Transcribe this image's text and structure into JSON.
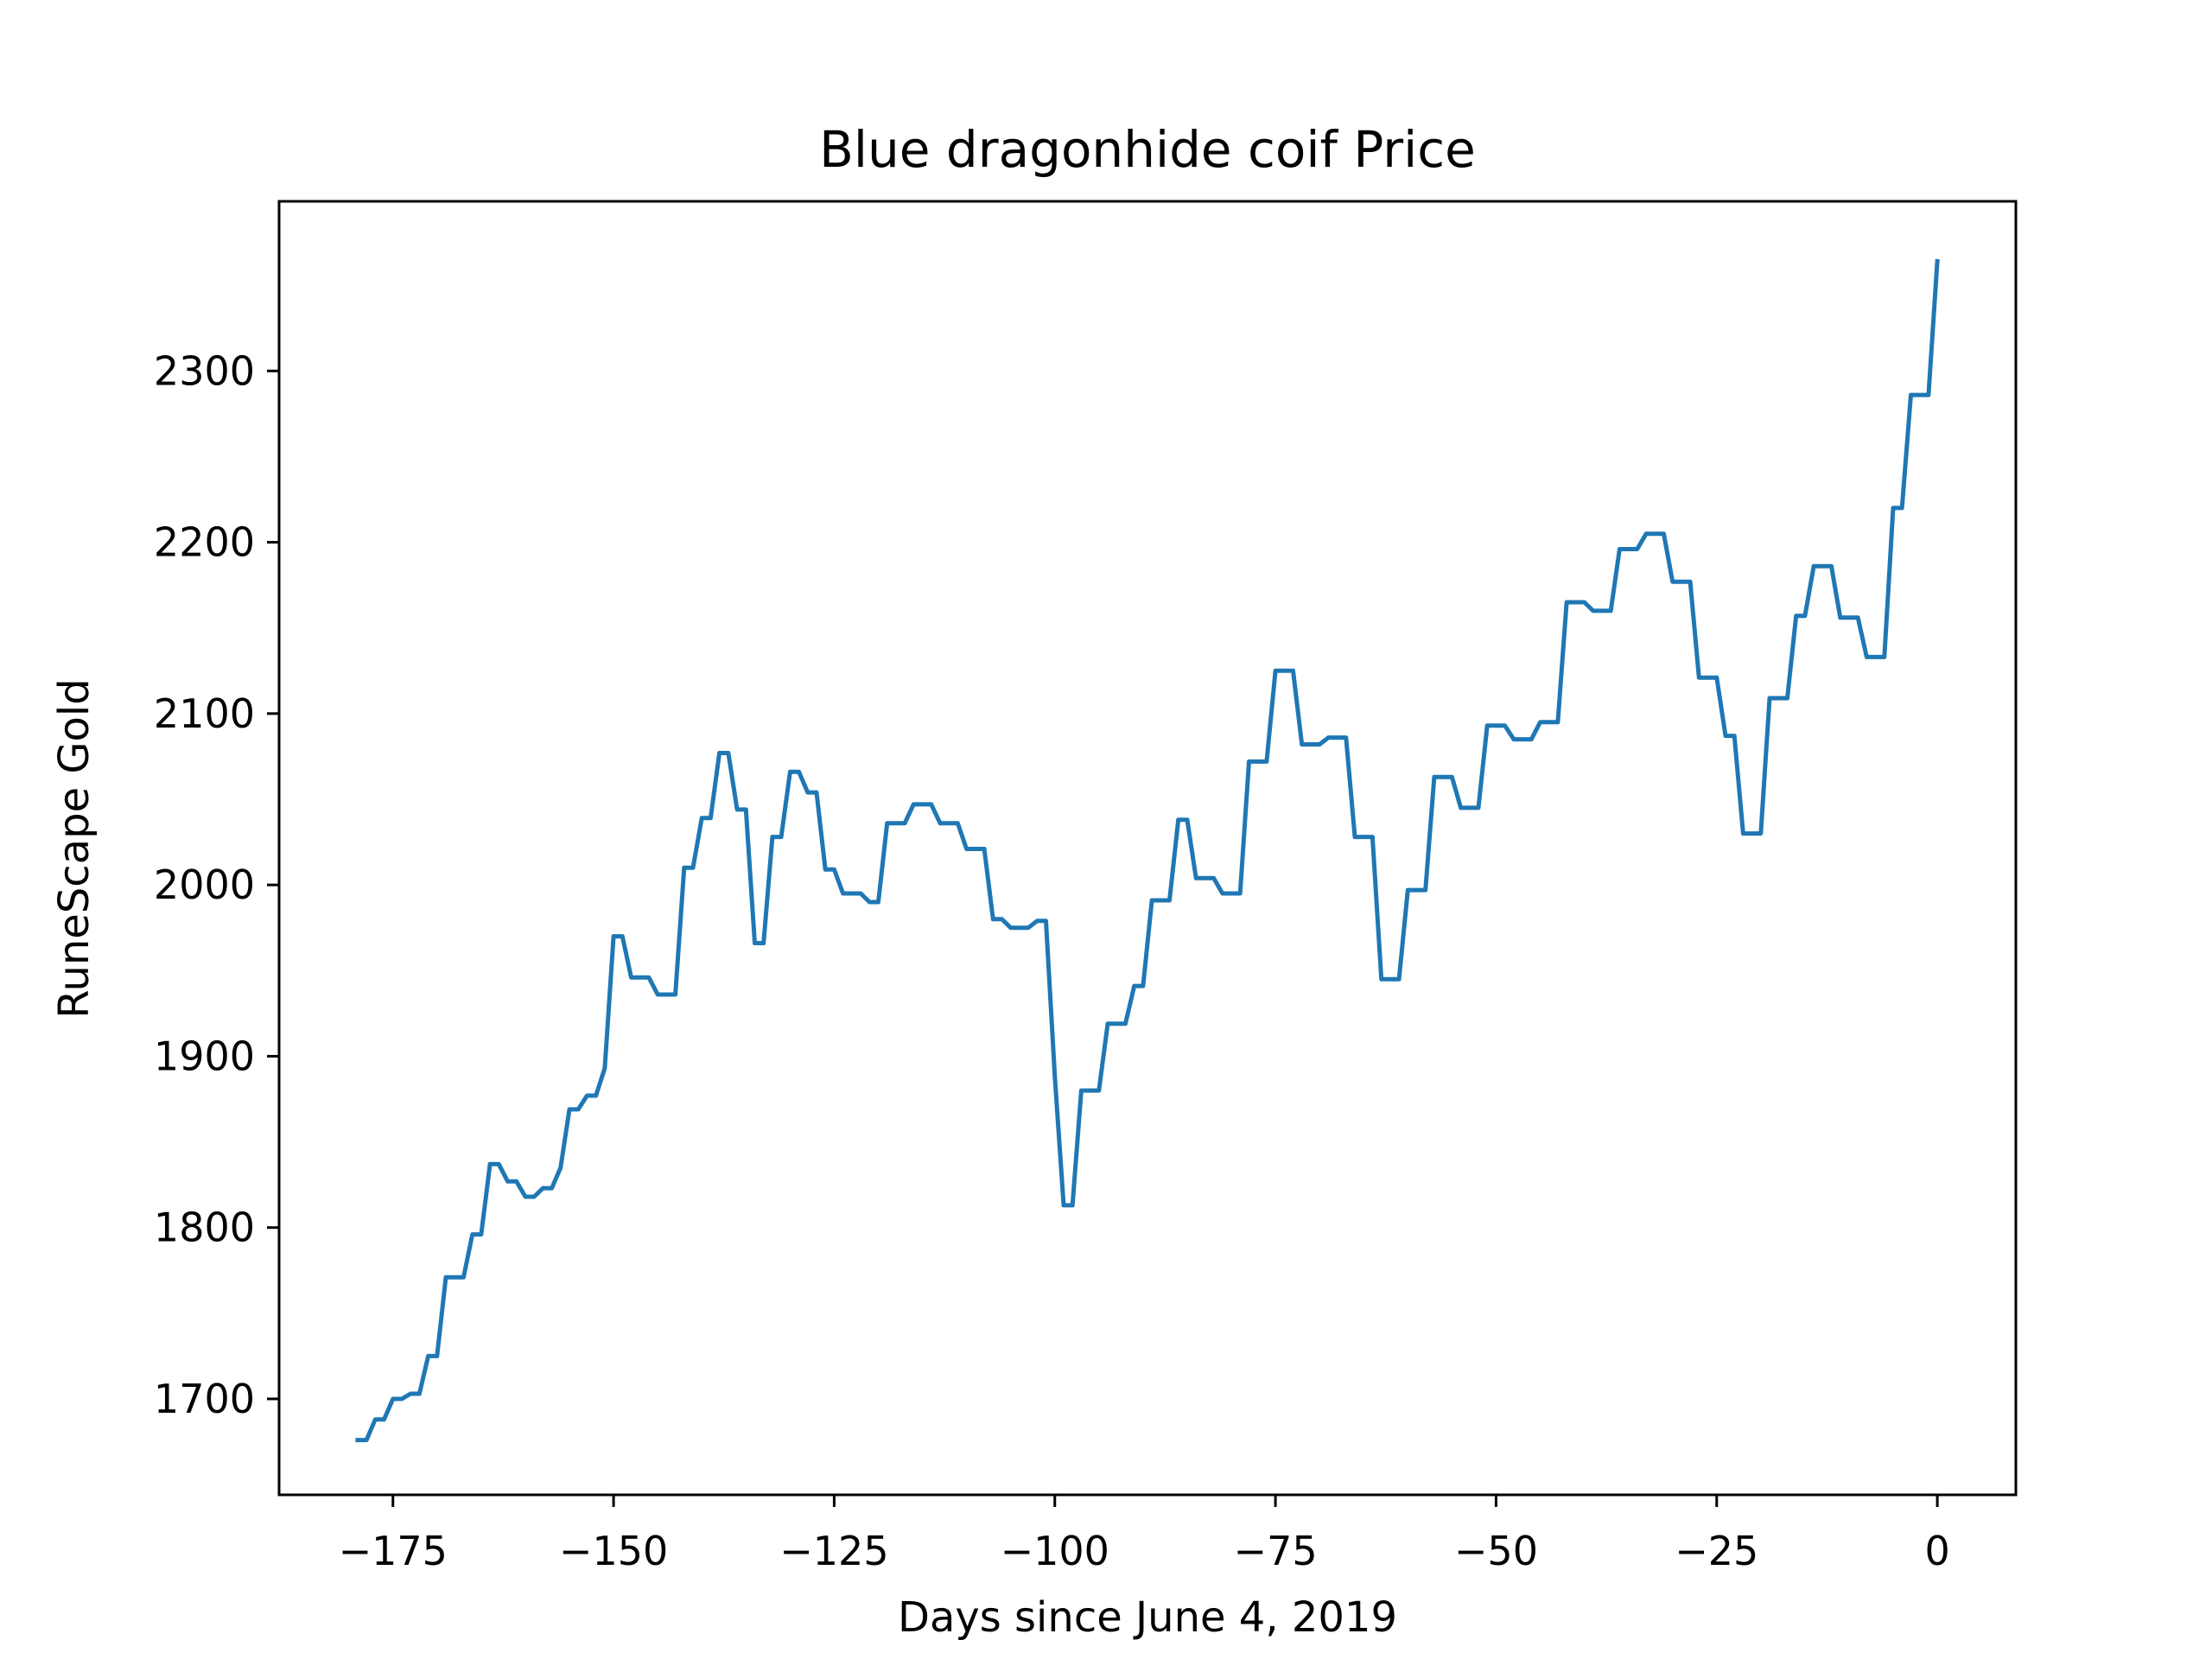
{
  "chart_data": {
    "type": "line",
    "title": "Blue dragonhide coif Price",
    "xlabel": "Days since June 4, 2019",
    "ylabel": "RuneScape Gold",
    "xlim": [
      -187.9,
      8.9
    ],
    "ylim": [
      1644,
      2399
    ],
    "xticks": [
      -175,
      -150,
      -125,
      -100,
      -75,
      -50,
      -25,
      0
    ],
    "xtick_labels": [
      "−175",
      "−150",
      "−125",
      "−100",
      "−75",
      "−50",
      "−25",
      "0"
    ],
    "yticks": [
      1700,
      1800,
      1900,
      2000,
      2100,
      2200,
      2300
    ],
    "ytick_labels": [
      "1700",
      "1800",
      "1900",
      "2000",
      "2100",
      "2200",
      "2300"
    ],
    "grid": false,
    "legend": "none",
    "line_color": "#1f77b4",
    "series": [
      {
        "x": [
          -179,
          -178,
          -177,
          -176,
          -175,
          -174,
          -173,
          -172,
          -171,
          -170,
          -169,
          -168,
          -167,
          -166,
          -165,
          -164,
          -163,
          -162,
          -161,
          -160,
          -159,
          -158,
          -157,
          -156,
          -155,
          -154,
          -153,
          -152,
          -151,
          -150,
          -149,
          -148,
          -147,
          -146,
          -145,
          -144,
          -143,
          -142,
          -141,
          -140,
          -139,
          -138,
          -137,
          -136,
          -135,
          -134,
          -133,
          -132,
          -131,
          -130,
          -129,
          -128,
          -127,
          -126,
          -125,
          -124,
          -123,
          -122,
          -121,
          -120,
          -119,
          -118,
          -117,
          -116,
          -115,
          -114,
          -113,
          -112,
          -111,
          -110,
          -109,
          -108,
          -107,
          -106,
          -105,
          -104,
          -103,
          -102,
          -101,
          -100,
          -99,
          -98,
          -97,
          -96,
          -95,
          -94,
          -93,
          -92,
          -91,
          -90,
          -89,
          -88,
          -87,
          -86,
          -85,
          -84,
          -83,
          -82,
          -81,
          -80,
          -79,
          -78,
          -77,
          -76,
          -75,
          -74,
          -73,
          -72,
          -71,
          -70,
          -69,
          -68,
          -67,
          -66,
          -65,
          -64,
          -63,
          -62,
          -61,
          -60,
          -59,
          -58,
          -57,
          -56,
          -55,
          -54,
          -53,
          -52,
          -51,
          -50,
          -49,
          -48,
          -47,
          -46,
          -45,
          -44,
          -43,
          -42,
          -41,
          -40,
          -39,
          -38,
          -37,
          -36,
          -35,
          -34,
          -33,
          -32,
          -31,
          -30,
          -29,
          -28,
          -27,
          -26,
          -25,
          -24,
          -23,
          -22,
          -21,
          -20,
          -19,
          -18,
          -17,
          -16,
          -15,
          -14,
          -13,
          -12,
          -11,
          -10,
          -9,
          -8,
          -7,
          -6,
          -5,
          -4,
          -3,
          -2,
          -1,
          0
        ],
        "y": [
          1676,
          1676,
          1688,
          1688,
          1700,
          1700,
          1703,
          1703,
          1725,
          1725,
          1771,
          1771,
          1771,
          1796,
          1796,
          1837,
          1837,
          1827,
          1827,
          1818,
          1818,
          1823,
          1823,
          1835,
          1869,
          1869,
          1877,
          1877,
          1893,
          1970,
          1970,
          1946,
          1946,
          1946,
          1936,
          1936,
          1936,
          2010,
          2010,
          2039,
          2039,
          2077,
          2077,
          2044,
          2044,
          1966,
          1966,
          2028,
          2028,
          2066,
          2066,
          2054,
          2054,
          2009,
          2009,
          1995,
          1995,
          1995,
          1990,
          1990,
          2036,
          2036,
          2036,
          2047,
          2047,
          2047,
          2036,
          2036,
          2036,
          2021,
          2021,
          2021,
          1980,
          1980,
          1975,
          1975,
          1975,
          1979,
          1979,
          1888,
          1813,
          1813,
          1880,
          1880,
          1880,
          1919,
          1919,
          1919,
          1941,
          1941,
          1991,
          1991,
          1991,
          2038,
          2038,
          2004,
          2004,
          2004,
          1995,
          1995,
          1995,
          2072,
          2072,
          2072,
          2125,
          2125,
          2125,
          2082,
          2082,
          2082,
          2086,
          2086,
          2086,
          2028,
          2028,
          2028,
          1945,
          1945,
          1945,
          1997,
          1997,
          1997,
          2063,
          2063,
          2063,
          2045,
          2045,
          2045,
          2093,
          2093,
          2093,
          2085,
          2085,
          2085,
          2095,
          2095,
          2095,
          2165,
          2165,
          2165,
          2160,
          2160,
          2160,
          2196,
          2196,
          2196,
          2205,
          2205,
          2205,
          2177,
          2177,
          2177,
          2121,
          2121,
          2121,
          2087,
          2087,
          2030,
          2030,
          2030,
          2109,
          2109,
          2109,
          2157,
          2157,
          2186,
          2186,
          2186,
          2156,
          2156,
          2156,
          2133,
          2133,
          2133,
          2220,
          2220,
          2286,
          2286,
          2286,
          2364
        ]
      }
    ]
  }
}
